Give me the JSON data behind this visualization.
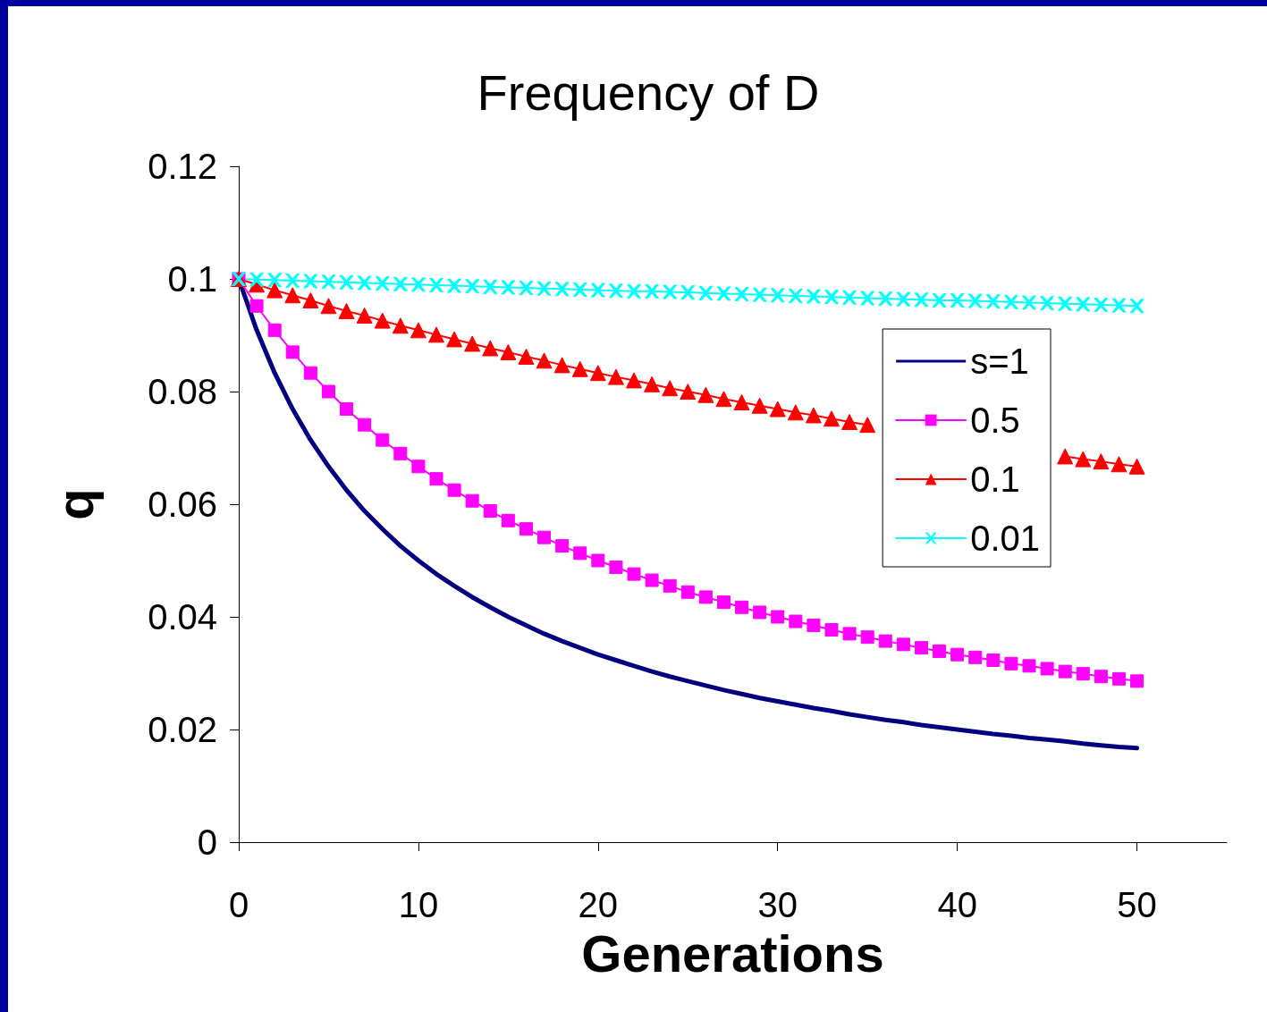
{
  "chart_data": {
    "type": "line",
    "title": "Frequency of D",
    "xlabel": "Generations",
    "ylabel": "q",
    "x": [
      0,
      1,
      2,
      3,
      4,
      5,
      6,
      7,
      8,
      9,
      10,
      11,
      12,
      13,
      14,
      15,
      16,
      17,
      18,
      19,
      20,
      21,
      22,
      23,
      24,
      25,
      26,
      27,
      28,
      29,
      30,
      31,
      32,
      33,
      34,
      35,
      36,
      37,
      38,
      39,
      40,
      41,
      42,
      43,
      44,
      45,
      46,
      47,
      48,
      49,
      50
    ],
    "series": [
      {
        "name": "s=1",
        "color": "#000080",
        "marker": "none",
        "values": [
          0.1,
          0.0909,
          0.0833,
          0.0769,
          0.0714,
          0.0667,
          0.0625,
          0.0588,
          0.0556,
          0.0526,
          0.05,
          0.0476,
          0.0455,
          0.0435,
          0.0417,
          0.04,
          0.0385,
          0.037,
          0.0357,
          0.0345,
          0.0333,
          0.0323,
          0.0313,
          0.0303,
          0.0294,
          0.0286,
          0.0278,
          0.027,
          0.0263,
          0.0256,
          0.025,
          0.0244,
          0.0238,
          0.0233,
          0.0227,
          0.0222,
          0.0217,
          0.0213,
          0.0208,
          0.0204,
          0.02,
          0.0196,
          0.0192,
          0.0189,
          0.0185,
          0.0182,
          0.0179,
          0.0175,
          0.0172,
          0.0169,
          0.0167
        ]
      },
      {
        "name": "0.5",
        "color": "#ff00ff",
        "marker": "square",
        "values": [
          0.1,
          0.0952,
          0.0909,
          0.087,
          0.0833,
          0.08,
          0.0769,
          0.0741,
          0.0714,
          0.069,
          0.0667,
          0.0645,
          0.0625,
          0.0606,
          0.0588,
          0.0571,
          0.0556,
          0.0541,
          0.0526,
          0.0513,
          0.05,
          0.0488,
          0.0476,
          0.0465,
          0.0455,
          0.0444,
          0.0435,
          0.0426,
          0.0417,
          0.0408,
          0.04,
          0.0392,
          0.0385,
          0.0377,
          0.037,
          0.0364,
          0.0357,
          0.0351,
          0.0345,
          0.0339,
          0.0333,
          0.0328,
          0.0323,
          0.0317,
          0.0313,
          0.0308,
          0.0303,
          0.0299,
          0.0294,
          0.029,
          0.0286
        ]
      },
      {
        "name": "0.1",
        "color": "#ff0000",
        "marker": "triangle",
        "values": [
          0.1,
          0.099,
          0.098,
          0.0971,
          0.0962,
          0.0952,
          0.0943,
          0.0935,
          0.0926,
          0.0917,
          0.0909,
          0.0901,
          0.0893,
          0.0885,
          0.0877,
          0.087,
          0.0862,
          0.0855,
          0.0847,
          0.084,
          0.0833,
          0.0826,
          0.082,
          0.0813,
          0.0806,
          0.08,
          0.0794,
          0.0787,
          0.0781,
          0.0775,
          0.0769,
          0.0763,
          0.0758,
          0.0752,
          0.0746,
          0.0741,
          null,
          null,
          null,
          null,
          null,
          null,
          null,
          null,
          null,
          null,
          0.0685,
          0.068,
          0.0676,
          0.0671,
          0.0667
        ]
      },
      {
        "name": "0.01",
        "color": "#00ffff",
        "marker": "cross",
        "values": [
          0.1,
          0.0999,
          0.0998,
          0.0997,
          0.0996,
          0.0995,
          0.0994,
          0.0993,
          0.0992,
          0.0991,
          0.099,
          0.0989,
          0.0988,
          0.0987,
          0.0986,
          0.0985,
          0.0984,
          0.0983,
          0.0982,
          0.0981,
          0.098,
          0.0979,
          0.0978,
          0.0978,
          0.0977,
          0.0976,
          0.0975,
          0.0974,
          0.0973,
          0.0972,
          0.0971,
          0.097,
          0.0969,
          0.0968,
          0.0967,
          0.0966,
          0.0965,
          0.0964,
          0.0963,
          0.0962,
          0.0962,
          0.0961,
          0.096,
          0.0959,
          0.0958,
          0.0957,
          0.0956,
          0.0955,
          0.0954,
          0.0953,
          0.0952
        ]
      }
    ],
    "xlim": [
      0,
      55
    ],
    "xticks": [
      0,
      10,
      20,
      30,
      40,
      50
    ],
    "ylim": [
      0,
      0.12
    ],
    "yticks": [
      0,
      0.02,
      0.04,
      0.06,
      0.08,
      0.1,
      0.12
    ],
    "legend": "right",
    "grid": false,
    "line_style": "solid"
  }
}
